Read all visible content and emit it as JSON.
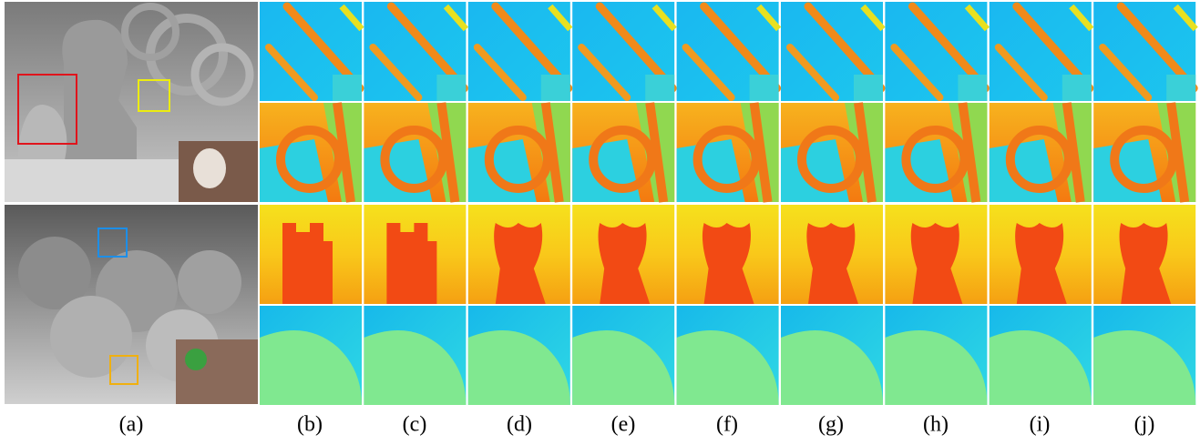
{
  "figure": {
    "labels": [
      "(a)",
      "(b)",
      "(c)",
      "(d)",
      "(e)",
      "(f)",
      "(g)",
      "(h)",
      "(i)",
      "(j)"
    ]
  }
}
